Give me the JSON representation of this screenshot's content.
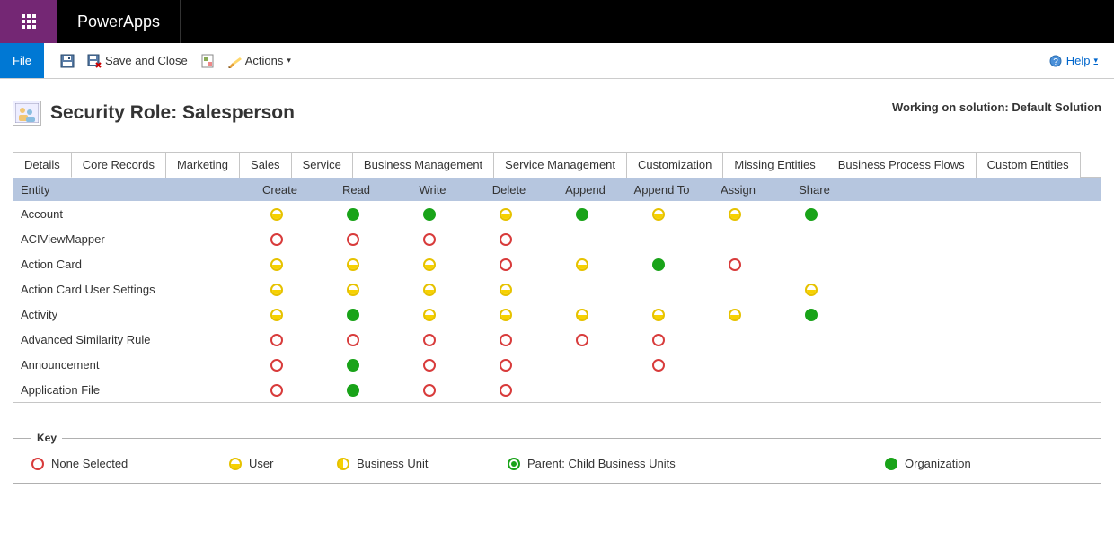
{
  "brand": "PowerApps",
  "toolbar": {
    "file_label": "File",
    "save_and_close": "Save and Close",
    "actions_label": "Actions",
    "help_label": "Help"
  },
  "header": {
    "title": "Security Role: Salesperson",
    "solution_label": "Working on solution: Default Solution"
  },
  "tabs": [
    {
      "label": "Details",
      "active": false
    },
    {
      "label": "Core Records",
      "active": true
    },
    {
      "label": "Marketing",
      "active": false
    },
    {
      "label": "Sales",
      "active": false
    },
    {
      "label": "Service",
      "active": false
    },
    {
      "label": "Business Management",
      "active": false
    },
    {
      "label": "Service Management",
      "active": false
    },
    {
      "label": "Customization",
      "active": false
    },
    {
      "label": "Missing Entities",
      "active": false
    },
    {
      "label": "Business Process Flows",
      "active": false
    },
    {
      "label": "Custom Entities",
      "active": false
    }
  ],
  "grid": {
    "columns": [
      "Entity",
      "Create",
      "Read",
      "Write",
      "Delete",
      "Append",
      "Append To",
      "Assign",
      "Share"
    ],
    "rows": [
      {
        "entity": "Account",
        "perms": [
          "user",
          "org",
          "org",
          "user",
          "org",
          "user",
          "user",
          "org"
        ]
      },
      {
        "entity": "ACIViewMapper",
        "perms": [
          "none",
          "none",
          "none",
          "none",
          "",
          "",
          "",
          ""
        ]
      },
      {
        "entity": "Action Card",
        "perms": [
          "user",
          "user",
          "user",
          "none",
          "user",
          "org",
          "none",
          ""
        ]
      },
      {
        "entity": "Action Card User Settings",
        "perms": [
          "user",
          "user",
          "user",
          "user",
          "",
          "",
          "",
          "user"
        ]
      },
      {
        "entity": "Activity",
        "perms": [
          "user",
          "org",
          "halfy",
          "user",
          "halfy",
          "halfy",
          "user",
          "org"
        ]
      },
      {
        "entity": "Advanced Similarity Rule",
        "perms": [
          "none",
          "none",
          "none",
          "none",
          "none",
          "none",
          "",
          ""
        ]
      },
      {
        "entity": "Announcement",
        "perms": [
          "none",
          "org",
          "none",
          "none",
          "",
          "none",
          "",
          ""
        ]
      },
      {
        "entity": "Application File",
        "perms": [
          "none",
          "org",
          "none",
          "none",
          "",
          "",
          "",
          ""
        ]
      }
    ]
  },
  "key": {
    "legend": "Key",
    "items": [
      {
        "type": "none",
        "label": "None Selected"
      },
      {
        "type": "user",
        "label": "User"
      },
      {
        "type": "bu",
        "label": "Business Unit"
      },
      {
        "type": "parent",
        "label": "Parent: Child Business Units"
      },
      {
        "type": "org",
        "label": "Organization"
      }
    ]
  },
  "colors": {
    "waffle_bg": "#742774",
    "file_bg": "#0078d4",
    "header_row_bg": "#b6c6df",
    "perm_none_border": "#d83b3b",
    "perm_user_color": "#f7d100",
    "perm_org_color": "#19a319"
  }
}
